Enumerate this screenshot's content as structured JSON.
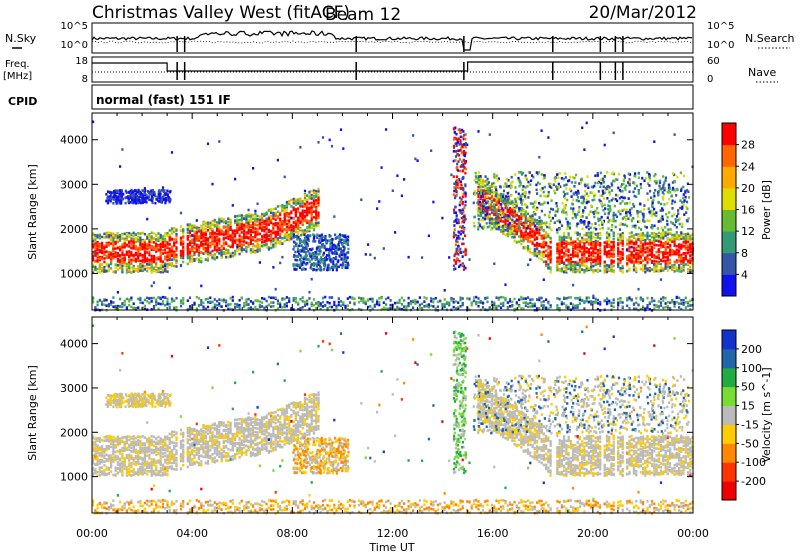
{
  "header": {
    "station": "Christmas Valley West (fitACF)",
    "beam": "Beam 12",
    "date": "20/Mar/2012"
  },
  "noise_panel": {
    "left_label": "N.Sky",
    "right_label": "N.Search",
    "left_ticks": [
      "10^5",
      "10^0"
    ],
    "right_ticks": [
      "10^5",
      "10^0"
    ]
  },
  "freq_panel": {
    "left_label_1": "Freq.",
    "left_label_2": "[MHz]",
    "right_label": "Nave",
    "left_ticks": [
      "18",
      "8"
    ],
    "right_ticks": [
      "60",
      "0"
    ]
  },
  "cpid": {
    "label": "CPID",
    "value": "normal (fast) 151 IF"
  },
  "chart_data": [
    {
      "type": "heatmap",
      "title": "Power",
      "ylabel": "Slant Range [km]",
      "xlabel": "Time UT",
      "yticks": [
        "1000",
        "2000",
        "3000",
        "4000"
      ],
      "ylim": [
        180,
        4600
      ],
      "xlim": [
        "00:00",
        "24:00"
      ],
      "colorbar_label": "Power [dB]",
      "colorbar_ticks": [
        "28",
        "24",
        "20",
        "16",
        "12",
        "8",
        "4"
      ],
      "colors": [
        "#ff0000",
        "#ff6600",
        "#ffaa00",
        "#dddd00",
        "#66bb33",
        "#339977",
        "#3355aa",
        "#1111ee"
      ]
    },
    {
      "type": "heatmap",
      "title": "Velocity",
      "ylabel": "Slant Range [km]",
      "xlabel": "Time UT",
      "yticks": [
        "1000",
        "2000",
        "3000",
        "4000"
      ],
      "ylim": [
        180,
        4600
      ],
      "xlim": [
        "00:00",
        "24:00"
      ],
      "colorbar_label": "Velocity [m s^-1]",
      "colorbar_ticks": [
        "200",
        "100",
        "50",
        "15",
        "-15",
        "-50",
        "-100",
        "-200"
      ],
      "colors": [
        "#1133cc",
        "#2266aa",
        "#22aa44",
        "#77dd33",
        "#bbbbbb",
        "#ffcc00",
        "#ff8800",
        "#ff3300",
        "#ee0000"
      ]
    }
  ],
  "xaxis": {
    "ticks": [
      "00:00",
      "04:00",
      "08:00",
      "12:00",
      "16:00",
      "20:00",
      "00:00"
    ],
    "label": "Time UT"
  }
}
